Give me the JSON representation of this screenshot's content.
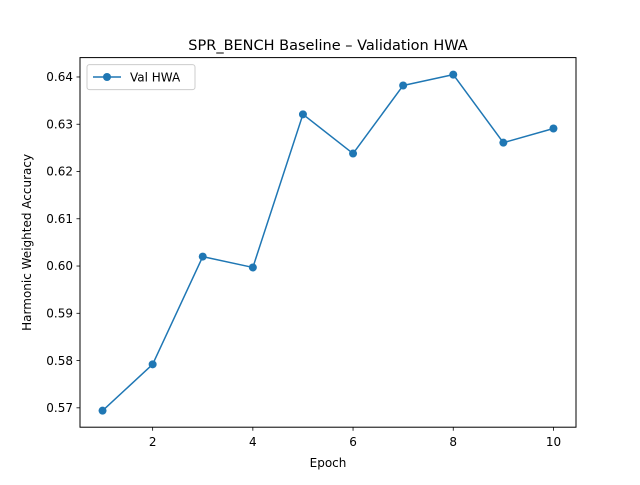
{
  "chart_data": {
    "type": "line",
    "title": "SPR_BENCH Baseline – Validation HWA",
    "xlabel": "Epoch",
    "ylabel": "Harmonic Weighted Accuracy",
    "xlim": [
      0.55,
      10.45
    ],
    "ylim": [
      0.5659,
      0.6441
    ],
    "x_ticks": [
      2,
      4,
      6,
      8,
      10
    ],
    "y_ticks": [
      0.57,
      0.58,
      0.59,
      0.6,
      0.61,
      0.62,
      0.63,
      0.64
    ],
    "grid": false,
    "legend": {
      "position": "top-left"
    },
    "series": [
      {
        "name": "Val HWA",
        "color": "#1f77b4",
        "marker": "circle",
        "x": [
          1,
          2,
          3,
          4,
          5,
          6,
          7,
          8,
          9,
          10
        ],
        "y": [
          0.5694,
          0.5792,
          0.602,
          0.5997,
          0.6321,
          0.6238,
          0.6382,
          0.6405,
          0.6261,
          0.6291
        ]
      }
    ]
  }
}
